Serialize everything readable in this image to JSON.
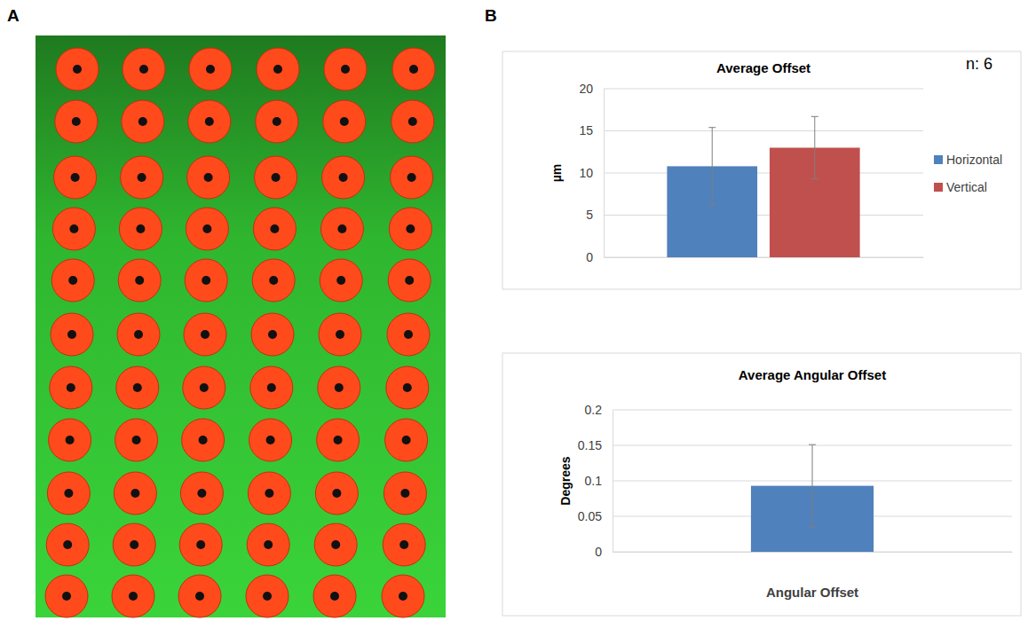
{
  "panels": [
    "A",
    "B"
  ],
  "chart_data": [
    {
      "type": "bar",
      "title": "Average Offset",
      "y_label": "µm",
      "annotation": "n: 6",
      "categories": [
        null
      ],
      "series": [
        {
          "name": "Horizontal",
          "color": "#4f81bd",
          "values": [
            10.8
          ],
          "errors": [
            4.6
          ]
        },
        {
          "name": "Vertical",
          "color": "#c0504d",
          "values": [
            13.0
          ],
          "errors": [
            3.7
          ]
        }
      ],
      "ylim": [
        0,
        20
      ],
      "yticks": [
        0,
        5,
        10,
        15,
        20
      ],
      "grid": true,
      "legend": "right"
    },
    {
      "type": "bar",
      "title": "Average Angular Offset",
      "y_label": "Degrees",
      "categories": [
        "Angular Offset"
      ],
      "values": [
        0.093
      ],
      "errors": [
        0.058
      ],
      "color": "#4f81bd",
      "ylim": [
        0,
        0.2
      ],
      "yticks": [
        0,
        0.05,
        0.1,
        0.15,
        0.2
      ],
      "grid": true
    }
  ]
}
